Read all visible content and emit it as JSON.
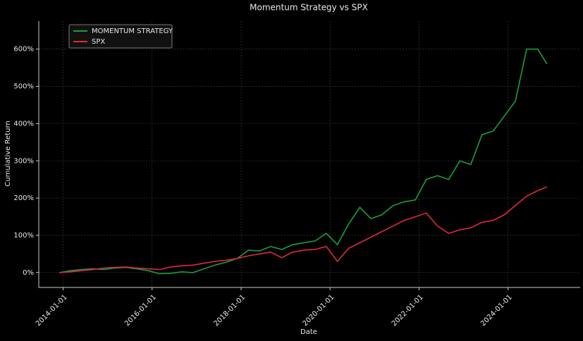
{
  "chart_data": {
    "type": "line",
    "title": "Momentum Strategy vs SPX",
    "x_label": "Date",
    "y_label": "Cumulative Return",
    "x": [
      "2013-12-01",
      "2014-03-01",
      "2014-06-01",
      "2014-09-01",
      "2014-12-01",
      "2015-03-01",
      "2015-06-01",
      "2015-09-01",
      "2015-12-01",
      "2016-03-01",
      "2016-06-01",
      "2016-09-01",
      "2016-12-01",
      "2017-03-01",
      "2017-06-01",
      "2017-09-01",
      "2017-12-01",
      "2018-03-01",
      "2018-06-01",
      "2018-09-01",
      "2018-12-01",
      "2019-03-01",
      "2019-06-01",
      "2019-09-01",
      "2019-12-01",
      "2020-03-01",
      "2020-06-01",
      "2020-09-01",
      "2020-12-01",
      "2021-03-01",
      "2021-06-01",
      "2021-09-01",
      "2021-12-01",
      "2022-03-01",
      "2022-06-01",
      "2022-09-01",
      "2022-12-01",
      "2023-03-01",
      "2023-06-01",
      "2023-09-01",
      "2023-12-01",
      "2024-03-01",
      "2024-06-01",
      "2024-09-01",
      "2024-11-15"
    ],
    "series": [
      {
        "name": "MOMENTUM STRATEGY",
        "color": "#1a9e3a",
        "values": [
          0,
          5,
          8,
          10,
          8,
          12,
          14,
          10,
          5,
          -3,
          -2,
          2,
          0,
          10,
          20,
          28,
          38,
          60,
          58,
          70,
          62,
          75,
          80,
          85,
          105,
          75,
          130,
          175,
          145,
          155,
          180,
          190,
          195,
          250,
          260,
          250,
          300,
          290,
          370,
          380,
          420,
          460,
          600,
          600,
          560
        ]
      },
      {
        "name": "SPX",
        "color": "#e0283a",
        "values": [
          0,
          2,
          5,
          8,
          12,
          14,
          15,
          12,
          10,
          8,
          15,
          18,
          20,
          25,
          30,
          33,
          38,
          45,
          50,
          55,
          40,
          55,
          60,
          62,
          70,
          30,
          65,
          80,
          95,
          110,
          125,
          140,
          150,
          160,
          125,
          105,
          115,
          120,
          135,
          140,
          155,
          180,
          205,
          220,
          230
        ]
      }
    ],
    "xlim": [
      "2013-06-15",
      "2025-08-15"
    ],
    "xticks": [
      "2014-01-01",
      "2016-01-01",
      "2018-01-01",
      "2020-01-01",
      "2022-01-01",
      "2024-01-01"
    ],
    "ylim": [
      -40,
      675
    ],
    "yticks": [
      {
        "value": 0,
        "label": "0%"
      },
      {
        "value": 100,
        "label": "100%"
      },
      {
        "value": 200,
        "label": "200%"
      },
      {
        "value": 300,
        "label": "300%"
      },
      {
        "value": 400,
        "label": "400%"
      },
      {
        "value": 500,
        "label": "500%"
      },
      {
        "value": 600,
        "label": "600%"
      }
    ],
    "grid": true,
    "legend": "upper left"
  }
}
